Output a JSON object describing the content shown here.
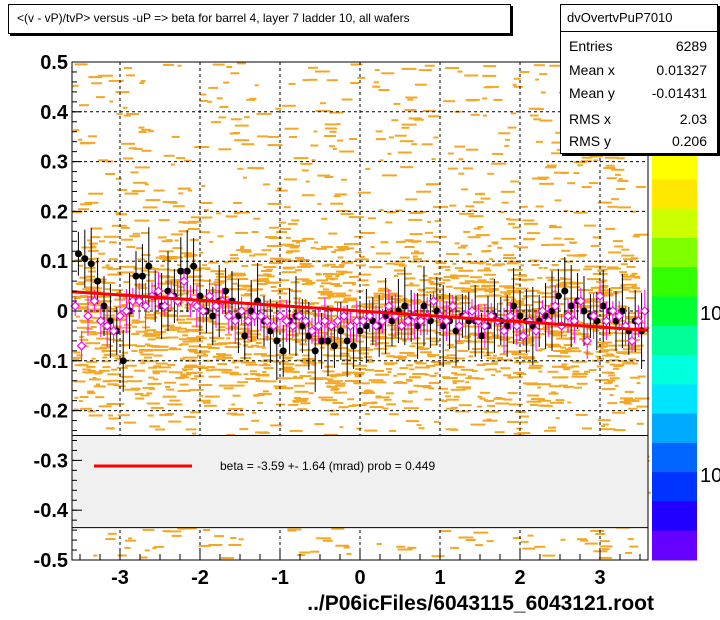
{
  "title": "<(v - vP)/tvP> versus  -uP => beta for barrel 4, layer 7 ladder 10, all wafers",
  "stats": {
    "name": "dvOvertvPuP7010",
    "rows": [
      {
        "key": "Entries",
        "value": "6289"
      },
      {
        "key": "Mean x",
        "value": "0.01327"
      },
      {
        "key": "Mean y",
        "value": "-0.01431"
      },
      {
        "key": "RMS x",
        "value": "2.03"
      },
      {
        "key": "RMS y",
        "value": "0.206"
      }
    ]
  },
  "fit_legend": "beta =   -3.59 +-  1.64 (mrad) prob = 0.449",
  "colors": {
    "hist": "#f5a623",
    "fit_line": "#ff0000",
    "profile_black": "#000000",
    "profile_magenta": "#ff00ff",
    "legend_bg": "#f0f0f0"
  },
  "chart_data": {
    "type": "scatter",
    "title": "<(v - vP)/tvP> versus  -uP => beta for barrel 4, layer 7 ladder 10, all wafers",
    "xlabel": "../P06icFiles/6043115_6043121.root",
    "ylabel": "",
    "xlim": [
      -3.6,
      3.6
    ],
    "ylim": [
      -0.5,
      0.5
    ],
    "xticks": [
      "-3",
      "-2",
      "-1",
      "0",
      "1",
      "2",
      "3"
    ],
    "yticks": [
      "-0.5",
      "-0.4",
      "-0.3",
      "-0.2",
      "-0.1",
      "0",
      "0.1",
      "0.2",
      "0.3",
      "0.4",
      "0.5"
    ],
    "colorbar_labels": [
      "10",
      "10"
    ],
    "grid": true,
    "fit": {
      "intercept": 0.0,
      "slope": -0.00359
    },
    "series": [
      {
        "values": [
          [
            -3.52,
            0.115
          ],
          [
            -3.44,
            0.105
          ],
          [
            -3.36,
            0.095
          ],
          [
            -3.28,
            0.06
          ],
          [
            -3.2,
            0.01
          ],
          [
            -3.12,
            -0.02
          ],
          [
            -3.04,
            -0.04
          ],
          [
            -2.96,
            -0.1
          ],
          [
            -2.88,
            0.0
          ],
          [
            -2.8,
            0.07
          ],
          [
            -2.72,
            0.07
          ],
          [
            -2.64,
            0.09
          ],
          [
            -2.56,
            0.03
          ],
          [
            -2.48,
            0.01
          ],
          [
            -2.4,
            0.04
          ],
          [
            -2.32,
            0.03
          ],
          [
            -2.24,
            0.08
          ],
          [
            -2.16,
            0.08
          ],
          [
            -2.08,
            0.09
          ],
          [
            -2.0,
            0.03
          ],
          [
            -1.92,
            0.0
          ],
          [
            -1.84,
            -0.01
          ],
          [
            -1.76,
            0.02
          ],
          [
            -1.68,
            0.04
          ],
          [
            -1.6,
            0.02
          ],
          [
            -1.52,
            -0.01
          ],
          [
            -1.44,
            -0.05
          ],
          [
            -1.36,
            0.0
          ],
          [
            -1.28,
            0.02
          ],
          [
            -1.2,
            -0.02
          ],
          [
            -1.12,
            -0.04
          ],
          [
            -1.04,
            -0.06
          ],
          [
            -0.96,
            -0.08
          ],
          [
            -0.88,
            -0.02
          ],
          [
            -0.8,
            -0.01
          ],
          [
            -0.72,
            -0.03
          ],
          [
            -0.64,
            -0.05
          ],
          [
            -0.56,
            -0.08
          ],
          [
            -0.48,
            -0.06
          ],
          [
            -0.4,
            -0.06
          ],
          [
            -0.32,
            -0.07
          ],
          [
            -0.24,
            -0.04
          ],
          [
            -0.16,
            -0.06
          ],
          [
            -0.08,
            -0.07
          ],
          [
            0.0,
            -0.04
          ],
          [
            0.08,
            -0.03
          ],
          [
            0.16,
            -0.02
          ],
          [
            0.24,
            -0.03
          ],
          [
            0.32,
            -0.01
          ],
          [
            0.4,
            -0.02
          ],
          [
            0.48,
            0.0
          ],
          [
            0.56,
            0.01
          ],
          [
            0.64,
            -0.01
          ],
          [
            0.72,
            -0.03
          ],
          [
            0.8,
            0.01
          ],
          [
            0.88,
            -0.02
          ],
          [
            0.96,
            0.0
          ],
          [
            1.04,
            -0.03
          ],
          [
            1.12,
            -0.02
          ],
          [
            1.2,
            -0.04
          ],
          [
            1.28,
            -0.01
          ],
          [
            1.36,
            -0.02
          ],
          [
            1.44,
            -0.02
          ],
          [
            1.52,
            -0.05
          ],
          [
            1.6,
            -0.03
          ],
          [
            1.68,
            -0.01
          ],
          [
            1.76,
            -0.02
          ],
          [
            1.84,
            -0.03
          ],
          [
            1.92,
            0.01
          ],
          [
            2.0,
            -0.01
          ],
          [
            2.08,
            -0.02
          ],
          [
            2.16,
            -0.03
          ],
          [
            2.24,
            -0.02
          ],
          [
            2.32,
            -0.01
          ],
          [
            2.4,
            0.0
          ],
          [
            2.48,
            0.03
          ],
          [
            2.56,
            0.04
          ],
          [
            2.64,
            0.01
          ],
          [
            2.72,
            0.02
          ],
          [
            2.8,
            0.0
          ],
          [
            2.88,
            -0.01
          ],
          [
            2.96,
            -0.02
          ],
          [
            3.04,
            0.01
          ],
          [
            3.12,
            0.0
          ],
          [
            3.2,
            -0.02
          ],
          [
            3.28,
            0.0
          ],
          [
            3.36,
            -0.04
          ],
          [
            3.44,
            -0.02
          ],
          [
            3.52,
            -0.04
          ]
        ],
        "marker": "filled-circle"
      },
      {
        "values": [
          [
            -3.56,
            0.01
          ],
          [
            -3.48,
            -0.07
          ],
          [
            -3.4,
            -0.01
          ],
          [
            -3.32,
            0.02
          ],
          [
            -3.24,
            -0.02
          ],
          [
            -3.16,
            -0.03
          ],
          [
            -3.08,
            -0.04
          ],
          [
            -3.0,
            -0.01
          ],
          [
            -2.92,
            0.0
          ],
          [
            -2.84,
            0.02
          ],
          [
            -2.76,
            0.02
          ],
          [
            -2.68,
            0.01
          ],
          [
            -2.6,
            0.03
          ],
          [
            -2.52,
            0.04
          ],
          [
            -2.44,
            0.01
          ],
          [
            -2.36,
            0.03
          ],
          [
            -2.28,
            0.02
          ],
          [
            -2.2,
            0.06
          ],
          [
            -2.12,
            0.02
          ],
          [
            -2.04,
            0.01
          ],
          [
            -1.96,
            0.0
          ],
          [
            -1.88,
            0.03
          ],
          [
            -1.8,
            0.01
          ],
          [
            -1.72,
            0.02
          ],
          [
            -1.64,
            -0.01
          ],
          [
            -1.56,
            -0.02
          ],
          [
            -1.48,
            0.0
          ],
          [
            -1.4,
            -0.02
          ],
          [
            -1.32,
            -0.01
          ],
          [
            -1.24,
            -0.01
          ],
          [
            -1.16,
            -0.02
          ],
          [
            -1.08,
            -0.03
          ],
          [
            -1.0,
            -0.01
          ],
          [
            -0.92,
            -0.02
          ],
          [
            -0.84,
            -0.03
          ],
          [
            -0.76,
            -0.01
          ],
          [
            -0.68,
            -0.02
          ],
          [
            -0.6,
            -0.04
          ],
          [
            -0.52,
            -0.03
          ],
          [
            -0.44,
            -0.02
          ],
          [
            -0.36,
            -0.03
          ],
          [
            -0.28,
            -0.02
          ],
          [
            -0.2,
            -0.01
          ],
          [
            -0.12,
            -0.03
          ],
          [
            -0.04,
            -0.02
          ],
          [
            0.04,
            -0.02
          ],
          [
            0.12,
            -0.01
          ],
          [
            0.2,
            -0.03
          ],
          [
            0.28,
            -0.02
          ],
          [
            0.36,
            0.01
          ],
          [
            0.44,
            -0.01
          ],
          [
            0.52,
            -0.03
          ],
          [
            0.6,
            -0.02
          ],
          [
            0.68,
            -0.01
          ],
          [
            0.76,
            -0.02
          ],
          [
            0.84,
            -0.01
          ],
          [
            0.92,
            0.02
          ],
          [
            1.0,
            -0.01
          ],
          [
            1.08,
            -0.02
          ],
          [
            1.16,
            0.01
          ],
          [
            1.24,
            -0.03
          ],
          [
            1.32,
            -0.01
          ],
          [
            1.4,
            0.0
          ],
          [
            1.48,
            -0.02
          ],
          [
            1.56,
            -0.03
          ],
          [
            1.64,
            -0.01
          ],
          [
            1.72,
            -0.02
          ],
          [
            1.8,
            -0.04
          ],
          [
            1.88,
            -0.01
          ],
          [
            1.96,
            -0.03
          ],
          [
            2.04,
            -0.05
          ],
          [
            2.12,
            -0.02
          ],
          [
            2.2,
            -0.04
          ],
          [
            2.28,
            0.0
          ],
          [
            2.36,
            -0.02
          ],
          [
            2.44,
            0.01
          ],
          [
            2.52,
            -0.03
          ],
          [
            2.6,
            -0.01
          ],
          [
            2.68,
            -0.02
          ],
          [
            2.76,
            0.02
          ],
          [
            2.84,
            -0.06
          ],
          [
            2.92,
            -0.01
          ],
          [
            3.0,
            0.03
          ],
          [
            3.08,
            -0.02
          ],
          [
            3.16,
            0.0
          ],
          [
            3.24,
            -0.01
          ],
          [
            3.32,
            -0.03
          ],
          [
            3.4,
            -0.06
          ],
          [
            3.48,
            -0.02
          ],
          [
            3.56,
            0.0
          ]
        ],
        "marker": "open-diamond"
      }
    ]
  }
}
